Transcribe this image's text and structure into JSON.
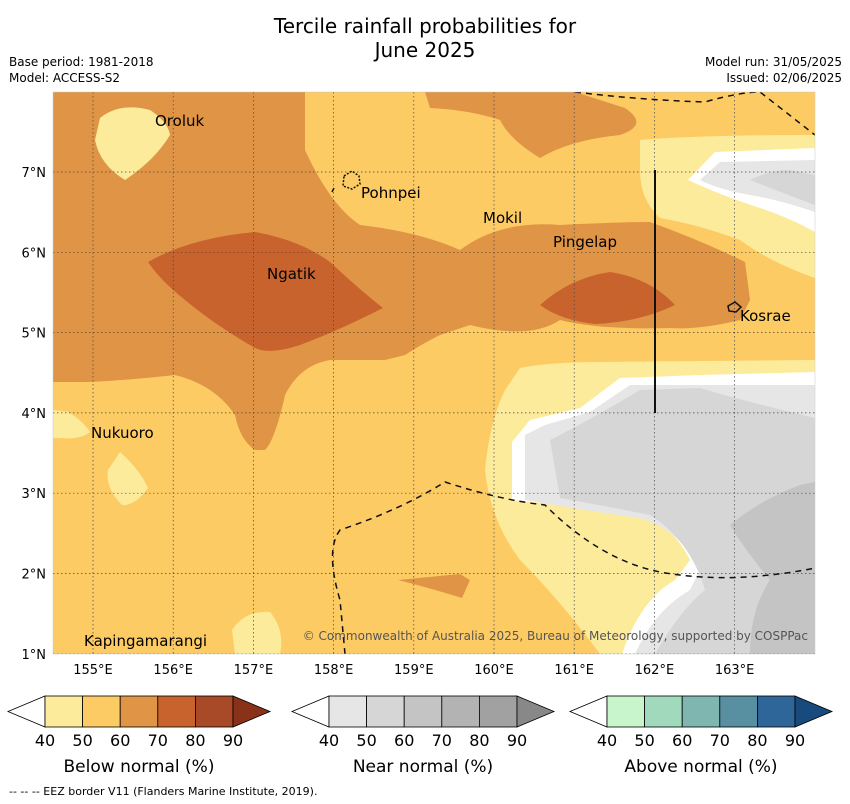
{
  "title_line1": "Tercile rainfall probabilities for",
  "title_line2": "June 2025",
  "base_period": "Base period: 1981-2018",
  "model": "Model: ACCESS-S2",
  "model_run": "Model run: 31/05/2025",
  "issued": "Issued: 02/06/2025",
  "copyright": "© Commonwealth of Australia 2025, Bureau of Meteorology, supported by COSPPac",
  "lon_labels": [
    "155°E",
    "156°E",
    "157°E",
    "158°E",
    "159°E",
    "160°E",
    "161°E",
    "162°E",
    "163°E"
  ],
  "lat_labels": [
    "7°N",
    "6°N",
    "5°N",
    "4°N",
    "3°N",
    "2°N",
    "1°N"
  ],
  "places": [
    {
      "name": "Oroluk"
    },
    {
      "name": "Pohnpei"
    },
    {
      "name": "Mokil"
    },
    {
      "name": "Pingelap"
    },
    {
      "name": "Ngatik"
    },
    {
      "name": "Kosrae"
    },
    {
      "name": "Nukuoro"
    },
    {
      "name": "Kapingamarangi"
    }
  ],
  "legends": [
    {
      "title": "Below normal (%)",
      "ticks": [
        "40",
        "50",
        "60",
        "70",
        "80",
        "90"
      ],
      "colors": [
        "#fdeb9c",
        "#fdcb64",
        "#e09445",
        "#c9632e",
        "#a84a28",
        "#8a3218"
      ]
    },
    {
      "title": "Near normal (%)",
      "ticks": [
        "40",
        "50",
        "60",
        "70",
        "80",
        "90"
      ],
      "colors": [
        "#e6e6e6",
        "#d6d6d6",
        "#c4c4c4",
        "#b3b3b3",
        "#a1a1a1",
        "#888888"
      ]
    },
    {
      "title": "Above normal (%)",
      "ticks": [
        "40",
        "50",
        "60",
        "70",
        "80",
        "90"
      ],
      "colors": [
        "#c8f5cc",
        "#a1d9bd",
        "#80b6b0",
        "#5890a2",
        "#2f6699",
        "#184a7e"
      ]
    }
  ],
  "footer": "-- -- -- EEZ border V11 (Flanders Marine Institute, 2019)."
}
